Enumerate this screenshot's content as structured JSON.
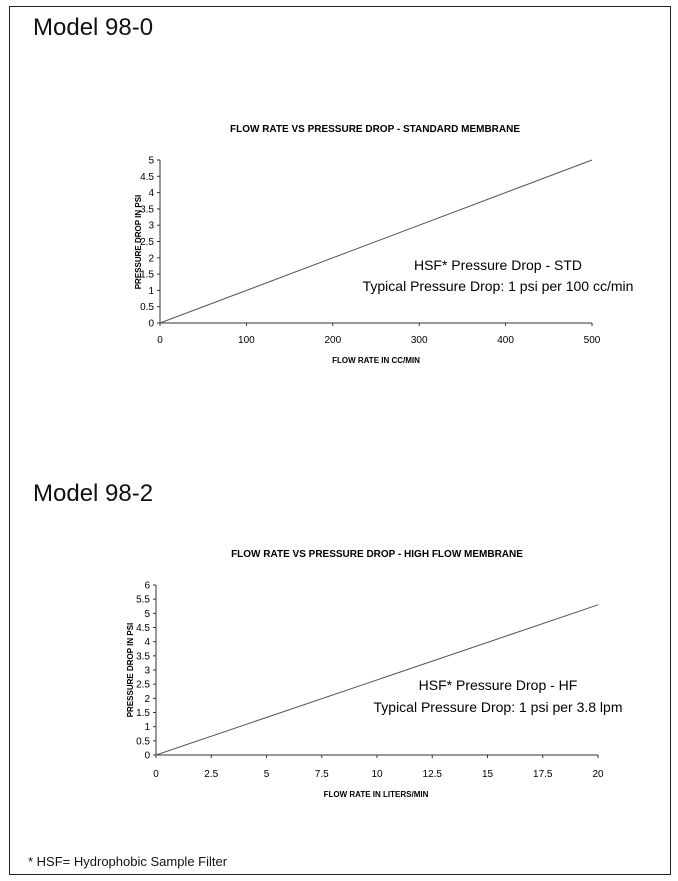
{
  "page": {
    "footnote": "* HSF= Hydrophobic Sample Filter"
  },
  "sections": [
    {
      "model_title": "Model 98-0"
    },
    {
      "model_title": "Model 98-2"
    }
  ],
  "chart_data": [
    {
      "type": "line",
      "title": "FLOW RATE VS PRESSURE DROP - STANDARD MEMBRANE",
      "xlabel": "FLOW RATE IN CC/MIN",
      "ylabel": "PRESSURE DROP IN PSI",
      "xlim": [
        0,
        500
      ],
      "ylim": [
        0,
        5
      ],
      "xticks": [
        "0",
        "100",
        "200",
        "300",
        "400",
        "500"
      ],
      "yticks": [
        "0",
        "0.5",
        "1",
        "1.5",
        "2",
        "2.5",
        "3",
        "3.5",
        "4",
        "4.5",
        "5"
      ],
      "grid": false,
      "series": [
        {
          "x": [
            0,
            500
          ],
          "y": [
            0,
            5
          ]
        }
      ],
      "annotations": [
        "HSF* Pressure Drop - STD",
        "Typical Pressure Drop: 1 psi per 100 cc/min"
      ]
    },
    {
      "type": "line",
      "title": "FLOW RATE VS PRESSURE DROP - HIGH FLOW MEMBRANE",
      "xlabel": "FLOW RATE IN LITERS/MIN",
      "ylabel": "PRESSURE DROP IN PSI",
      "xlim": [
        0,
        20
      ],
      "ylim": [
        0,
        6
      ],
      "xticks": [
        "0",
        "2.5",
        "5",
        "7.5",
        "10",
        "12.5",
        "15",
        "17.5",
        "20"
      ],
      "yticks": [
        "0",
        "0.5",
        "1",
        "1.5",
        "2",
        "2.5",
        "3",
        "3.5",
        "4",
        "4.5",
        "5",
        "5.5",
        "6"
      ],
      "grid": false,
      "series": [
        {
          "x": [
            0,
            20
          ],
          "y": [
            0,
            5.3
          ]
        }
      ],
      "annotations": [
        "HSF* Pressure Drop - HF",
        "Typical Pressure Drop: 1 psi per 3.8 lpm"
      ]
    }
  ]
}
